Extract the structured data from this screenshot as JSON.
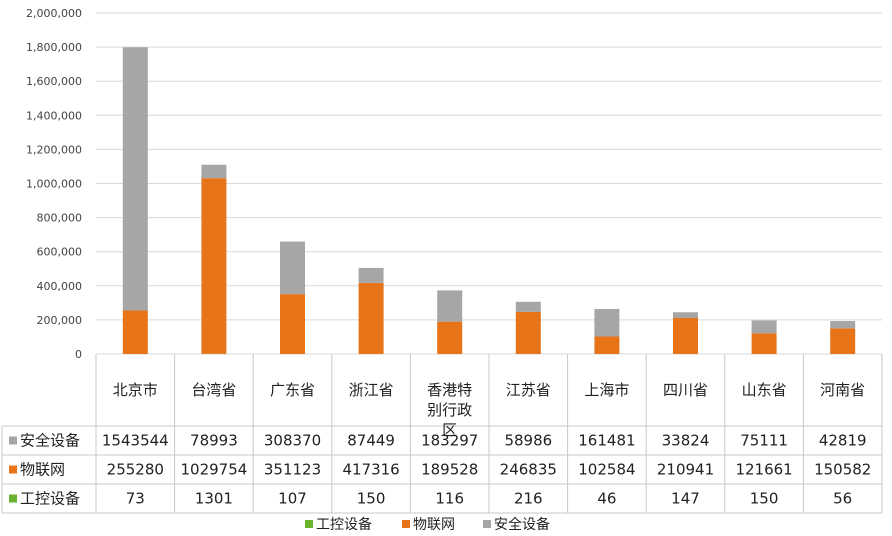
{
  "chart_data": {
    "type": "bar",
    "stacked": true,
    "categories": [
      "北京市",
      "台湾省",
      "广东省",
      "浙江省",
      "香港特别行政区",
      "江苏省",
      "上海市",
      "四川省",
      "山东省",
      "河南省"
    ],
    "series": [
      {
        "name": "工控设备",
        "color": "#6ab42d",
        "values": [
          73,
          1301,
          107,
          150,
          116,
          216,
          46,
          147,
          150,
          56
        ]
      },
      {
        "name": "物联网",
        "color": "#e8741a",
        "values": [
          255280,
          1029754,
          351123,
          417316,
          189528,
          246835,
          102584,
          210941,
          121661,
          150582
        ]
      },
      {
        "name": "安全设备",
        "color": "#a6a6a6",
        "values": [
          1543544,
          78993,
          308370,
          87449,
          183297,
          58986,
          161481,
          33824,
          75111,
          42819
        ]
      }
    ],
    "ylim": [
      0,
      2000000
    ],
    "yticks": [
      "0",
      "200,000",
      "400,000",
      "600,000",
      "800,000",
      "1,000,000",
      "1,200,000",
      "1,400,000",
      "1,600,000",
      "1,800,000",
      "2,000,000"
    ],
    "grid": true,
    "legend": "bottom",
    "data_table": true
  }
}
